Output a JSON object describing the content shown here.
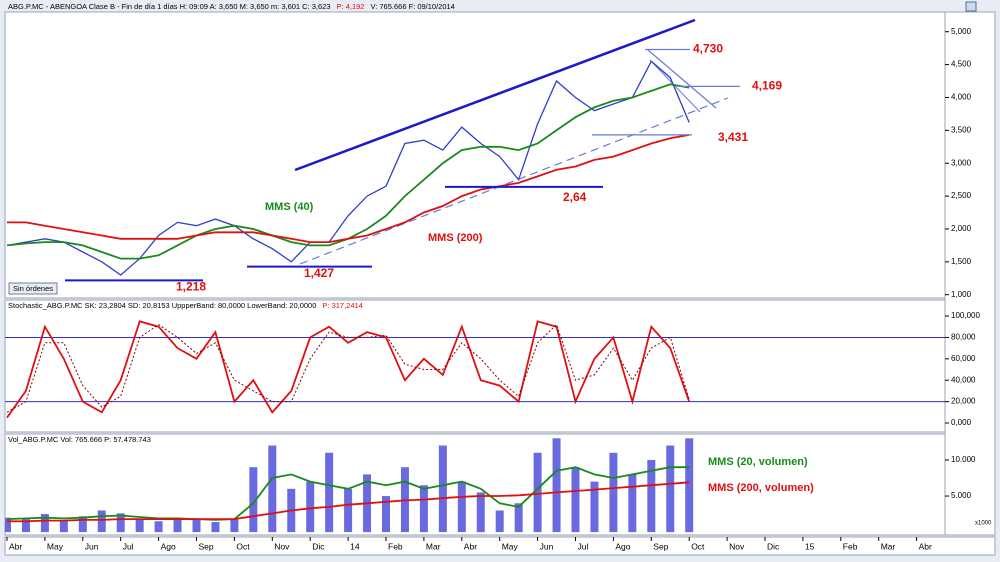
{
  "chart_data": [
    {
      "type": "line",
      "header": [
        {
          "text": "ABG.P.MC - ABENGOA Clase B - Fin de día 1 días  H: 09:09  A: 3,650  M: 3,650  m: 3,601  C: 3,623",
          "color": "#000000"
        },
        {
          "text": "P: 4,192",
          "color": "#e01010"
        },
        {
          "text": "V: 765.666  F: 09/10/2014",
          "color": "#000000"
        }
      ],
      "button": "Sin órdenes",
      "ylim": [
        0.95,
        5.3
      ],
      "yticks": [
        {
          "value": 1,
          "label": "1,000"
        },
        {
          "value": 1.5,
          "label": "1,500"
        },
        {
          "value": 2,
          "label": "2,000"
        },
        {
          "value": 2.5,
          "label": "2,500"
        },
        {
          "value": 3,
          "label": "3,000"
        },
        {
          "value": 3.5,
          "label": "3,500"
        },
        {
          "value": 4,
          "label": "4,000"
        },
        {
          "value": 4.5,
          "label": "4,500"
        },
        {
          "value": 5,
          "label": "5,000"
        }
      ],
      "series": [
        {
          "color": "#2f3fc8",
          "values": [
            1.75,
            1.8,
            1.85,
            1.8,
            1.65,
            1.5,
            1.3,
            1.55,
            1.9,
            2.1,
            2.05,
            2.15,
            2.05,
            1.85,
            1.7,
            1.5,
            1.8,
            1.8,
            2.2,
            2.5,
            2.65,
            3.3,
            3.35,
            3.2,
            3.55,
            3.3,
            3.1,
            2.75,
            3.6,
            4.25,
            4.0,
            3.8,
            3.9,
            4.0,
            4.55,
            4.3,
            3.62,
            null,
            null,
            null,
            null,
            null,
            null,
            null,
            null,
            null,
            null,
            null,
            null
          ]
        },
        {
          "name": "MMS (40)",
          "color": "#1a8a1a",
          "values": [
            1.75,
            1.78,
            1.8,
            1.8,
            1.75,
            1.65,
            1.55,
            1.55,
            1.6,
            1.75,
            1.9,
            2.0,
            2.05,
            2.0,
            1.9,
            1.8,
            1.75,
            1.75,
            1.85,
            2.0,
            2.2,
            2.5,
            2.75,
            3.0,
            3.2,
            3.25,
            3.25,
            3.2,
            3.3,
            3.5,
            3.7,
            3.85,
            3.95,
            4.0,
            4.1,
            4.2,
            4.15,
            null,
            null,
            null,
            null,
            null,
            null,
            null,
            null,
            null,
            null,
            null,
            null
          ]
        },
        {
          "name": "MMS (200)",
          "color": "#e01010",
          "values": [
            2.1,
            2.1,
            2.05,
            2.0,
            1.95,
            1.9,
            1.85,
            1.85,
            1.85,
            1.85,
            1.9,
            1.95,
            1.95,
            1.95,
            1.9,
            1.85,
            1.8,
            1.8,
            1.85,
            1.9,
            2.0,
            2.1,
            2.25,
            2.35,
            2.5,
            2.6,
            2.65,
            2.7,
            2.8,
            2.9,
            2.95,
            3.05,
            3.1,
            3.2,
            3.3,
            3.38,
            3.43,
            null,
            null,
            null,
            null,
            null,
            null,
            null,
            null,
            null,
            null,
            null,
            null
          ]
        }
      ],
      "annotations": [
        {
          "value": 4.73,
          "label": "4,730"
        },
        {
          "value": 4.169,
          "label": "4,169"
        },
        {
          "value": 3.431,
          "label": "3,431"
        },
        {
          "value": 2.64,
          "label": "2,64"
        },
        {
          "value": 1.218,
          "label": "1,218"
        },
        {
          "value": 1.427,
          "label": "1,427"
        }
      ]
    },
    {
      "type": "line",
      "header": [
        {
          "text": "Stochastic_ABG.P.MC  SK: 23,2804  SD: 20,8153  UppperBand: 80,0000  LowerBand: 20,0000",
          "color": "#000000"
        },
        {
          "text": "P: 317,2414",
          "color": "#e01010"
        }
      ],
      "ylim": [
        -8.4,
        115
      ],
      "yticks": [
        {
          "value": 0,
          "label": "0,000"
        },
        {
          "value": 20,
          "label": "20,000"
        },
        {
          "value": 40,
          "label": "40,000"
        },
        {
          "value": 60,
          "label": "60,000"
        },
        {
          "value": 80,
          "label": "80,000"
        },
        {
          "value": 100,
          "label": "100,000"
        }
      ],
      "bands": [
        80,
        20
      ],
      "series": [
        {
          "color": "#e01010",
          "values": [
            5,
            30,
            90,
            60,
            20,
            10,
            40,
            95,
            90,
            70,
            60,
            85,
            20,
            40,
            10,
            30,
            80,
            90,
            75,
            85,
            80,
            40,
            60,
            45,
            90,
            40,
            35,
            20,
            95,
            90,
            20,
            60,
            80,
            20,
            90,
            70,
            20,
            null,
            null,
            null,
            null,
            null,
            null,
            null,
            null,
            null,
            null,
            null,
            null
          ]
        },
        {
          "color": "#8a0000",
          "dashed": true,
          "values": [
            10,
            20,
            75,
            75,
            35,
            15,
            25,
            80,
            92,
            80,
            65,
            75,
            40,
            30,
            20,
            20,
            60,
            85,
            80,
            80,
            82,
            55,
            50,
            50,
            75,
            60,
            40,
            25,
            75,
            92,
            40,
            45,
            70,
            40,
            70,
            80,
            22,
            null,
            null,
            null,
            null,
            null,
            null,
            null,
            null,
            null,
            null,
            null,
            null
          ]
        }
      ]
    },
    {
      "type": "bar",
      "header": [
        {
          "text": "Vol_ABG.P.MC  Vol: 765.666  P: 57.478.743",
          "color": "#000000"
        }
      ],
      "y_unit": "x1000",
      "categories": [
        "Abr",
        null,
        "May",
        null,
        "Jun",
        null,
        "Jul",
        null,
        "Ago",
        null,
        "Sep",
        null,
        "Oct",
        null,
        "Nov",
        null,
        "Dic",
        null,
        "14",
        null,
        "Feb",
        null,
        "Mar",
        null,
        "Abr",
        null,
        "May",
        null,
        "Jun",
        null,
        "Jul",
        null,
        "Ago",
        null,
        "Sep",
        null,
        "Oct",
        null,
        "Nov",
        null,
        "Dic",
        null,
        "15",
        null,
        "Feb",
        null,
        "Mar",
        null,
        "Abr"
      ],
      "ylim": [
        -400,
        13600
      ],
      "yticks": [
        {
          "value": 5000,
          "label": "5.000"
        },
        {
          "value": 10000,
          "label": "10.000"
        }
      ],
      "color": "#6a6ae0",
      "values": [
        2000,
        1800,
        2500,
        1500,
        2200,
        3000,
        2600,
        1800,
        1500,
        2000,
        1700,
        1400,
        1800,
        9000,
        12000,
        6000,
        7000,
        11000,
        6000,
        8000,
        5000,
        9000,
        6500,
        12000,
        7000,
        5500,
        3000,
        4000,
        11000,
        13000,
        9000,
        7000,
        11000,
        8000,
        10000,
        12000,
        13000,
        null,
        null,
        null,
        null,
        null,
        null,
        null,
        null,
        null,
        null,
        null,
        null
      ],
      "series": [
        {
          "name": "MMS (20, volumen)",
          "color": "#1a8a1a",
          "values": [
            1800,
            1900,
            2000,
            1900,
            2000,
            2200,
            2300,
            2100,
            1900,
            1900,
            1800,
            1700,
            1800,
            4000,
            7500,
            8000,
            7000,
            6500,
            6000,
            7000,
            6500,
            7000,
            6000,
            6500,
            7000,
            6000,
            4000,
            3500,
            6000,
            8500,
            9000,
            8000,
            7500,
            8000,
            8500,
            9000,
            9000,
            null,
            null,
            null,
            null,
            null,
            null,
            null,
            null,
            null,
            null,
            null,
            null
          ]
        },
        {
          "name": "MMS (200, volumen)",
          "color": "#e01010",
          "values": [
            1500,
            1500,
            1600,
            1600,
            1700,
            1700,
            1800,
            1800,
            1800,
            1800,
            1800,
            1800,
            1800,
            2200,
            2600,
            3000,
            3300,
            3500,
            3800,
            4000,
            4200,
            4400,
            4500,
            4700,
            4900,
            5000,
            5000,
            5100,
            5300,
            5500,
            5700,
            5900,
            6100,
            6300,
            6500,
            6700,
            6900,
            null,
            null,
            null,
            null,
            null,
            null,
            null,
            null,
            null,
            null,
            null,
            null
          ]
        }
      ]
    }
  ]
}
